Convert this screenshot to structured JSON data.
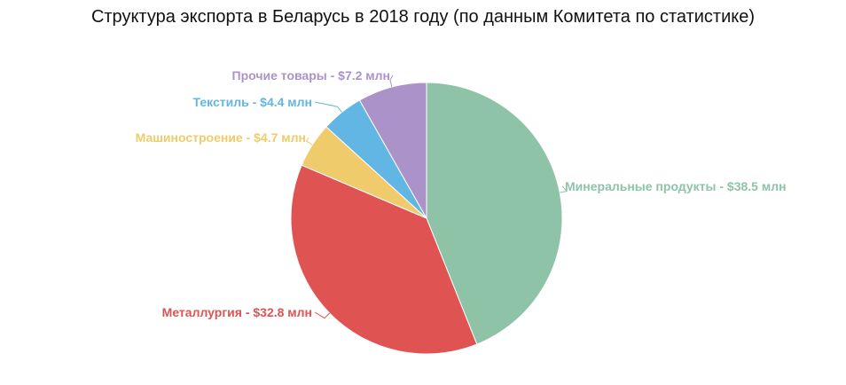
{
  "chart_data": {
    "type": "pie",
    "title": "Структура экспорта в Беларусь в 2018 году (по данным Комитета по статистике)",
    "categories": [
      "Минеральные продукты",
      "Металлургия",
      "Машиностроение",
      "Текстиль",
      "Прочие товары"
    ],
    "values": [
      38.5,
      32.8,
      4.7,
      4.4,
      7.2
    ],
    "slice_labels": [
      "Минеральные продукты - $38.5 млн",
      "Металлургия - $32.8 млн",
      "Машиностроение - $4.7 млн",
      "Текстиль - $4.4 млн",
      "Прочие товары - $7.2 млн"
    ],
    "colors": [
      "#8fc3a7",
      "#df5353",
      "#efcb6b",
      "#62b6e4",
      "#ab93c9"
    ],
    "legend": "none",
    "start": "12 o'clock, clockwise"
  }
}
